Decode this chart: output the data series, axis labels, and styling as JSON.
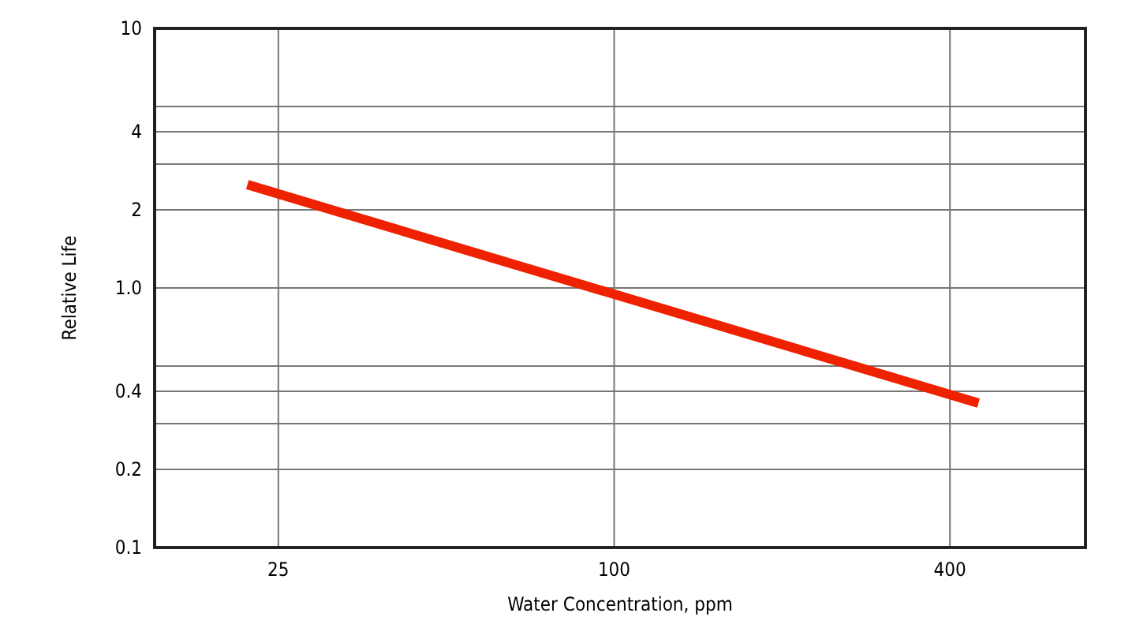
{
  "chart_data": {
    "type": "line",
    "xlabel": "Water Concentration, ppm",
    "ylabel": "Relative Life",
    "log": "xy",
    "grid": true,
    "xlim": [
      15,
      700
    ],
    "xticks": [
      25,
      100,
      400
    ],
    "ylim": [
      0.1,
      10
    ],
    "yticks": [
      0.1,
      0.2,
      {
        "value": 0.3,
        "label": null
      },
      0.4,
      {
        "value": 0.5,
        "label": null
      },
      "1.0",
      2,
      {
        "value": 3,
        "label": null
      },
      4,
      {
        "value": 5,
        "label": null
      },
      10
    ],
    "series": [
      {
        "color": "#ee2200",
        "x": [
          22,
          450
        ],
        "values": [
          2.5,
          0.36
        ]
      }
    ]
  }
}
